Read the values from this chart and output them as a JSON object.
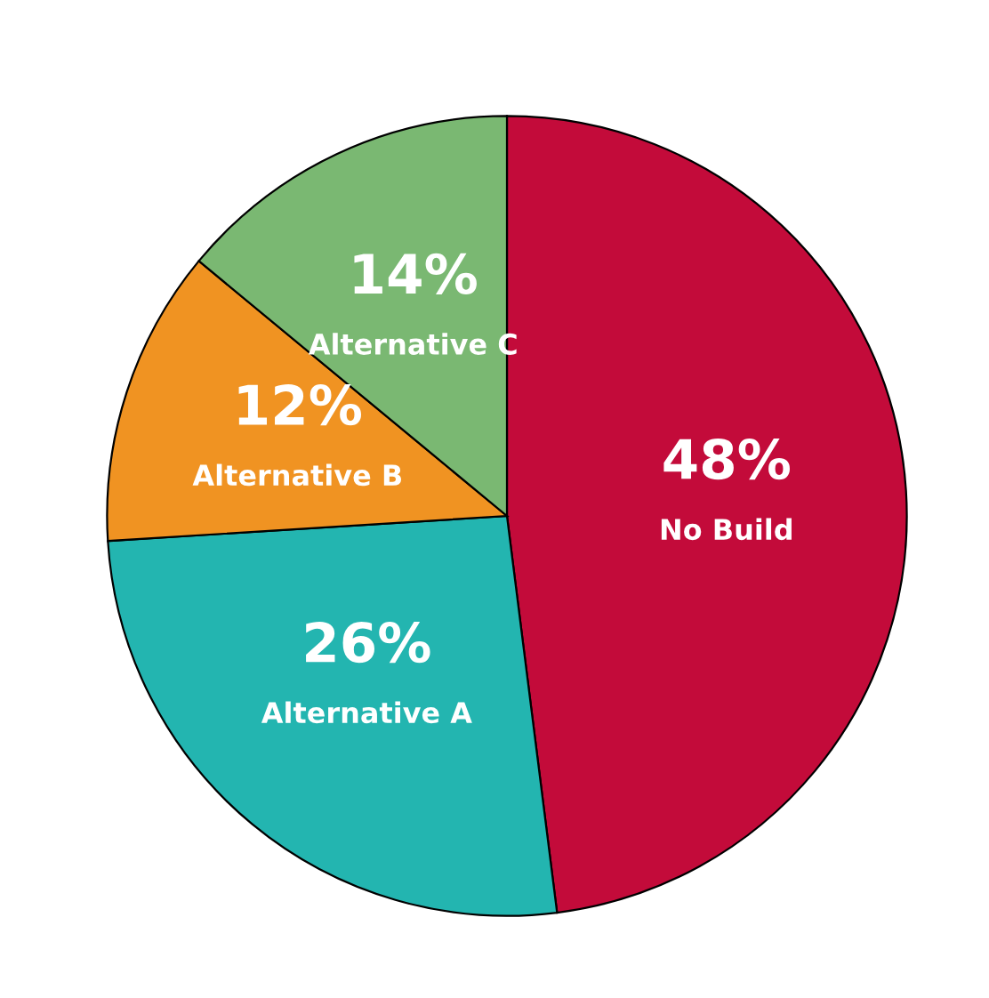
{
  "chart_data": {
    "type": "pie",
    "categories": [
      "No Build",
      "Alternative A",
      "Alternative B",
      "Alternative C"
    ],
    "values": [
      48,
      26,
      12,
      14
    ],
    "value_labels": [
      "48%",
      "26%",
      "12%",
      "14%"
    ],
    "colors": [
      "#c30b3a",
      "#23b5b0",
      "#f09322",
      "#7ab872"
    ],
    "legend": false
  }
}
